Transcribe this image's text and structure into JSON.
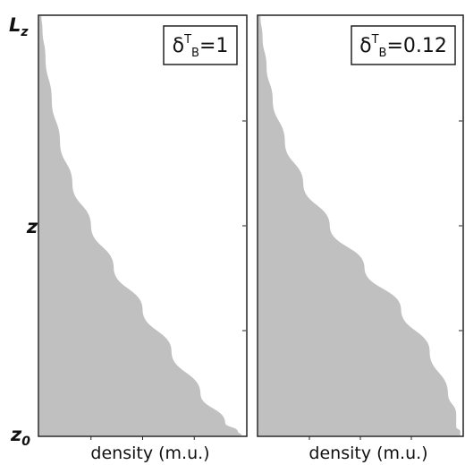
{
  "chart_data": [
    {
      "type": "area",
      "legend": {
        "symbol": "δ",
        "sup": "T",
        "sub": "B",
        "value": "=1"
      },
      "xlabel": "density (m.u.)",
      "ylabel": "z",
      "y_ticks": {
        "top": "L",
        "top_sub": "z",
        "bottom": "z",
        "bottom_sub": "0"
      },
      "legend_position": "top-right",
      "fill_color": "#c0c0c0",
      "grid": false,
      "xlim": [
        0,
        1
      ],
      "ylim": [
        0,
        1
      ],
      "x": [
        0.01,
        0.015,
        0.03,
        0.06,
        0.1,
        0.16,
        0.25,
        0.36,
        0.5,
        0.64,
        0.78,
        0.9,
        0.96,
        0.98
      ],
      "y": [
        1.0,
        0.97,
        0.9,
        0.8,
        0.7,
        0.6,
        0.5,
        0.4,
        0.3,
        0.2,
        0.1,
        0.03,
        0.01,
        0.0
      ]
    },
    {
      "type": "area",
      "legend": {
        "symbol": "δ",
        "sup": "T",
        "sub": "B",
        "value": "=0.12"
      },
      "xlabel": "density (m.u.)",
      "ylabel": "",
      "legend_position": "top-right",
      "fill_color": "#c0c0c0",
      "grid": false,
      "xlim": [
        0,
        1
      ],
      "ylim": [
        0,
        1
      ],
      "x": [
        0.01,
        0.02,
        0.04,
        0.07,
        0.13,
        0.22,
        0.35,
        0.52,
        0.7,
        0.84,
        0.93,
        0.97,
        0.97,
        0.99,
        0.99
      ],
      "y": [
        1.0,
        0.95,
        0.88,
        0.8,
        0.7,
        0.6,
        0.5,
        0.4,
        0.3,
        0.2,
        0.1,
        0.05,
        0.02,
        0.01,
        0.0
      ]
    }
  ]
}
